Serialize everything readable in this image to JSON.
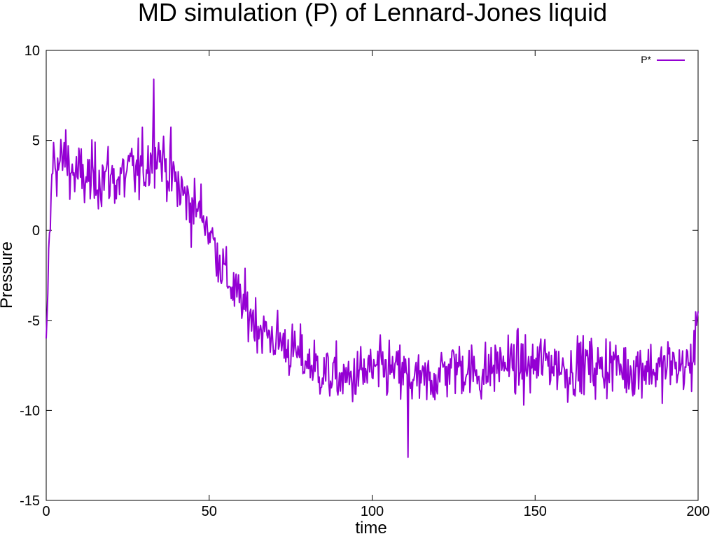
{
  "chart_data": {
    "type": "line",
    "title": "MD simulation (P) of Lennard-Jones liquid",
    "xlabel": "time",
    "ylabel": "Pressure",
    "xlim": [
      0,
      200
    ],
    "ylim": [
      -15,
      10
    ],
    "x_ticks": [
      "0",
      "50",
      "100",
      "150",
      "200"
    ],
    "y_ticks": [
      "10",
      "5",
      "0",
      "-5",
      "-10",
      "-15"
    ],
    "grid": false,
    "legend_position": "top-right",
    "series": [
      {
        "name": "P*",
        "color": "#9400d3",
        "x": [
          0,
          2,
          4,
          6,
          8,
          10,
          12,
          14,
          16,
          18,
          20,
          22,
          24,
          26,
          28,
          30,
          32,
          34,
          36,
          38,
          40,
          42,
          44,
          46,
          48,
          50,
          52,
          54,
          56,
          58,
          60,
          62,
          64,
          66,
          68,
          70,
          72,
          74,
          76,
          78,
          80,
          82,
          84,
          86,
          88,
          90,
          92,
          94,
          96,
          98,
          100,
          102,
          104,
          106,
          108,
          110,
          112,
          114,
          116,
          118,
          120,
          122,
          124,
          126,
          128,
          130,
          132,
          134,
          136,
          138,
          140,
          142,
          144,
          146,
          148,
          150,
          152,
          154,
          156,
          158,
          160,
          162,
          164,
          166,
          168,
          170,
          172,
          174,
          176,
          178,
          180,
          182,
          184,
          186,
          188,
          190,
          192,
          194,
          196,
          198,
          200
        ],
        "y": [
          -6.0,
          4.0,
          3.5,
          4.2,
          3.2,
          3.0,
          2.9,
          2.8,
          3.0,
          3.1,
          2.9,
          2.8,
          3.0,
          3.3,
          3.2,
          3.5,
          4.0,
          4.5,
          3.8,
          3.3,
          2.5,
          2.0,
          1.5,
          1.2,
          1.0,
          0.0,
          -1.0,
          -2.0,
          -2.8,
          -3.5,
          -4.0,
          -4.5,
          -5.0,
          -5.5,
          -5.8,
          -6.0,
          -6.2,
          -6.5,
          -6.8,
          -7.0,
          -7.3,
          -7.5,
          -7.8,
          -8.0,
          -8.1,
          -8.2,
          -8.3,
          -8.2,
          -8.0,
          -7.9,
          -7.8,
          -7.8,
          -7.7,
          -7.8,
          -7.9,
          -8.0,
          -8.2,
          -8.4,
          -8.5,
          -8.3,
          -8.0,
          -7.8,
          -7.6,
          -7.5,
          -7.6,
          -7.8,
          -7.9,
          -8.0,
          -7.8,
          -7.5,
          -7.3,
          -7.4,
          -7.5,
          -7.6,
          -7.7,
          -7.5,
          -7.3,
          -7.2,
          -7.4,
          -7.6,
          -7.8,
          -7.7,
          -7.5,
          -7.4,
          -7.6,
          -7.7,
          -7.5,
          -7.4,
          -7.6,
          -7.8,
          -7.7,
          -7.6,
          -7.5,
          -7.7,
          -7.8,
          -7.6,
          -7.4,
          -7.6,
          -7.5,
          -7.6,
          -4.5
        ],
        "extremes": {
          "max": {
            "x": 33,
            "y": 8.4
          },
          "min": {
            "x": 111,
            "y": -12.6
          }
        }
      }
    ]
  }
}
